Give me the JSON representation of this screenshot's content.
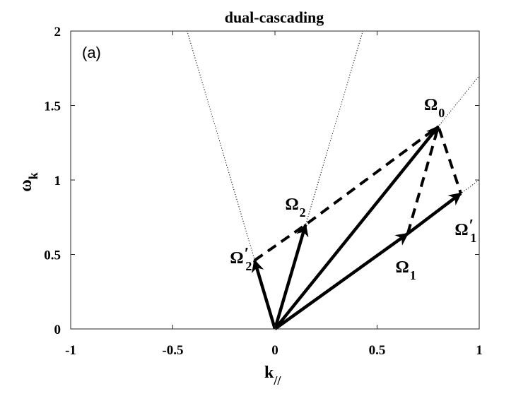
{
  "chart_data": {
    "type": "line",
    "title": "dual-cascading",
    "panel_label": "(a)",
    "xlabel": {
      "main": "k",
      "sub": "//"
    },
    "ylabel": {
      "main": "ω",
      "sub": "k"
    },
    "xlim": [
      -1,
      1
    ],
    "ylim": [
      0,
      2
    ],
    "x_ticks": [
      -1,
      -0.5,
      0,
      0.5,
      1
    ],
    "x_tick_labels": [
      "-1",
      "-0.5",
      "0",
      "0.5",
      "1"
    ],
    "y_ticks": [
      0,
      0.5,
      1,
      1.5,
      2
    ],
    "y_tick_labels": [
      "0",
      "0.5",
      "1",
      "1.5",
      "2"
    ],
    "dotted_lines": [
      {
        "points": [
          [
            0,
            0
          ],
          [
            -0.43,
            2.0
          ]
        ]
      },
      {
        "points": [
          [
            0,
            0
          ],
          [
            0.43,
            2.0
          ]
        ]
      },
      {
        "points": [
          [
            0,
            0
          ],
          [
            1.0,
            1.7
          ]
        ]
      },
      {
        "points": [
          [
            0,
            0
          ],
          [
            1.0,
            1.0
          ]
        ]
      }
    ],
    "solid_arrows": [
      {
        "from": [
          0,
          0
        ],
        "to": [
          0.8,
          1.36
        ]
      },
      {
        "from": [
          0,
          0
        ],
        "to": [
          0.15,
          0.7
        ]
      },
      {
        "from": [
          0,
          0
        ],
        "to": [
          -0.1,
          0.46
        ]
      },
      {
        "from": [
          0,
          0
        ],
        "to": [
          0.65,
          0.64
        ]
      },
      {
        "from": [
          0.65,
          0.64
        ],
        "to": [
          0.91,
          0.91
        ]
      }
    ],
    "dashed_segments": [
      {
        "points": [
          [
            -0.1,
            0.46
          ],
          [
            0.15,
            0.7
          ],
          [
            0.8,
            1.36
          ]
        ]
      },
      {
        "points": [
          [
            0.65,
            0.64
          ],
          [
            0.8,
            1.36
          ],
          [
            0.91,
            0.91
          ]
        ]
      }
    ],
    "annotations": [
      {
        "base": "Ω",
        "sub": "0",
        "prime": false,
        "x": 0.73,
        "y": 1.47
      },
      {
        "base": "Ω",
        "sub": "2",
        "prime": false,
        "x": 0.05,
        "y": 0.8
      },
      {
        "base": "Ω",
        "sub": "2",
        "prime": true,
        "x": -0.22,
        "y": 0.44
      },
      {
        "base": "Ω",
        "sub": "1",
        "prime": true,
        "x": 0.88,
        "y": 0.63
      },
      {
        "base": "Ω",
        "sub": "1",
        "prime": false,
        "x": 0.59,
        "y": 0.38
      }
    ]
  }
}
